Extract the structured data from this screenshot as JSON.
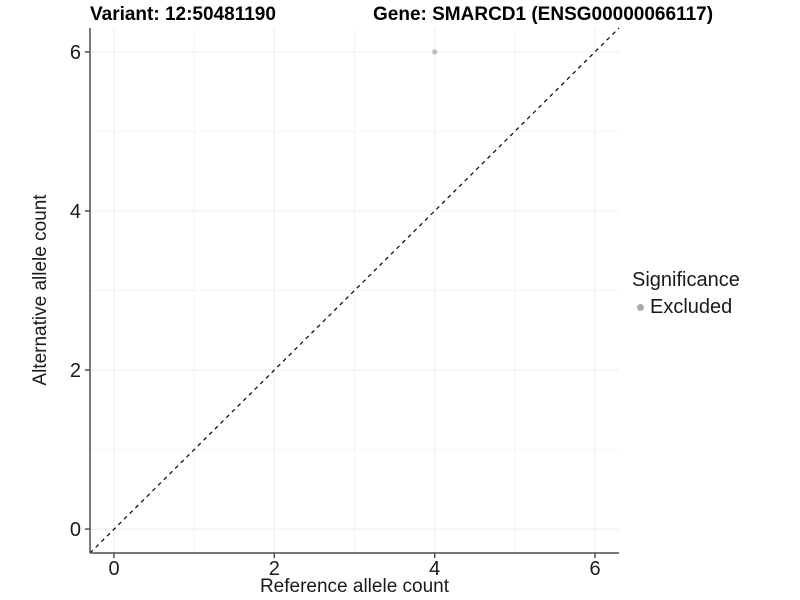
{
  "page": {
    "background": "#ffffff"
  },
  "chart_data": {
    "type": "scatter",
    "title_left": "Variant: 12:50481190",
    "title_right": "Gene: SMARCD1 (ENSG00000066117)",
    "xlabel": "Reference allele count",
    "ylabel": "Alternative allele count",
    "xlim": [
      -0.3,
      6.3
    ],
    "ylim": [
      -0.3,
      6.3
    ],
    "x_ticks": [
      0,
      2,
      4,
      6
    ],
    "y_ticks": [
      0,
      2,
      4,
      6
    ],
    "x_minor_ticks": [
      1,
      3,
      5
    ],
    "y_minor_ticks": [
      1,
      3,
      5
    ],
    "grid": "major and minor gridlines on white panel",
    "points": [
      {
        "x": 4,
        "y": 6,
        "series": "Excluded"
      }
    ],
    "identity_line": {
      "equation": "y = x",
      "style": "dashed",
      "color": "#000000"
    },
    "legend": {
      "title": "Significance",
      "position": "right",
      "items": [
        {
          "label": "Excluded",
          "color": "#ababab"
        }
      ]
    },
    "colors": {
      "point": "#bcbcbc",
      "grid_major": "#ececec",
      "grid_minor": "#f4f4f4",
      "axis": "#4d4d4d",
      "text": "#1a1a1a"
    }
  }
}
